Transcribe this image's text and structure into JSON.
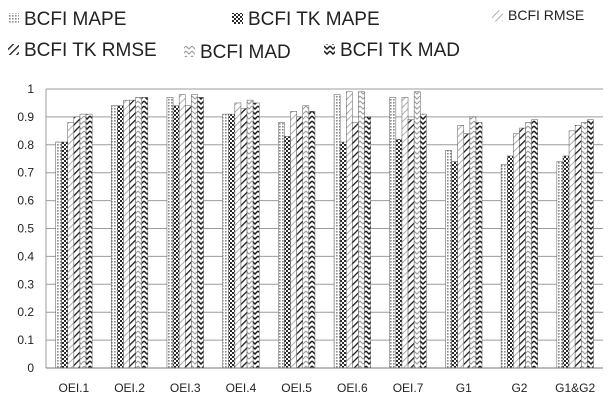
{
  "chart_data": {
    "type": "bar",
    "title": "",
    "xlabel": "",
    "ylabel": "",
    "ylim": [
      0,
      1
    ],
    "yticks": [
      "0",
      "0.1",
      "0.2",
      "0.3",
      "0.4",
      "0.5",
      "0.6",
      "0.7",
      "0.8",
      "0.9",
      "1"
    ],
    "grid": true,
    "legend_position": "top",
    "categories": [
      "OEI.1",
      "OEI.2",
      "OEI.3",
      "OEI.4",
      "OEI.5",
      "OEI.6",
      "OEI.7",
      "G1",
      "G2",
      "G1&G2"
    ],
    "series": [
      {
        "name": "BCFI MAPE",
        "pattern": "dots",
        "values": [
          0.81,
          0.94,
          0.97,
          0.91,
          0.88,
          0.98,
          0.97,
          0.78,
          0.73,
          0.74
        ]
      },
      {
        "name": "BCFI TK MAPE",
        "pattern": "checker",
        "values": [
          0.81,
          0.94,
          0.94,
          0.91,
          0.83,
          0.81,
          0.82,
          0.74,
          0.76,
          0.76
        ]
      },
      {
        "name": "BCFI RMSE",
        "pattern": "diag-light",
        "values": [
          0.88,
          0.96,
          0.98,
          0.95,
          0.92,
          0.99,
          0.97,
          0.87,
          0.84,
          0.85
        ]
      },
      {
        "name": "BCFI TK RMSE",
        "pattern": "diag-bold",
        "values": [
          0.9,
          0.96,
          0.94,
          0.93,
          0.9,
          0.88,
          0.89,
          0.84,
          0.86,
          0.87
        ]
      },
      {
        "name": "BCFI MAD",
        "pattern": "chevron-light",
        "values": [
          0.91,
          0.97,
          0.98,
          0.96,
          0.94,
          0.99,
          0.99,
          0.9,
          0.88,
          0.88
        ]
      },
      {
        "name": "BCFI TK MAD",
        "pattern": "chevron-bold",
        "values": [
          0.91,
          0.97,
          0.97,
          0.95,
          0.92,
          0.9,
          0.91,
          0.88,
          0.89,
          0.89
        ]
      }
    ]
  }
}
